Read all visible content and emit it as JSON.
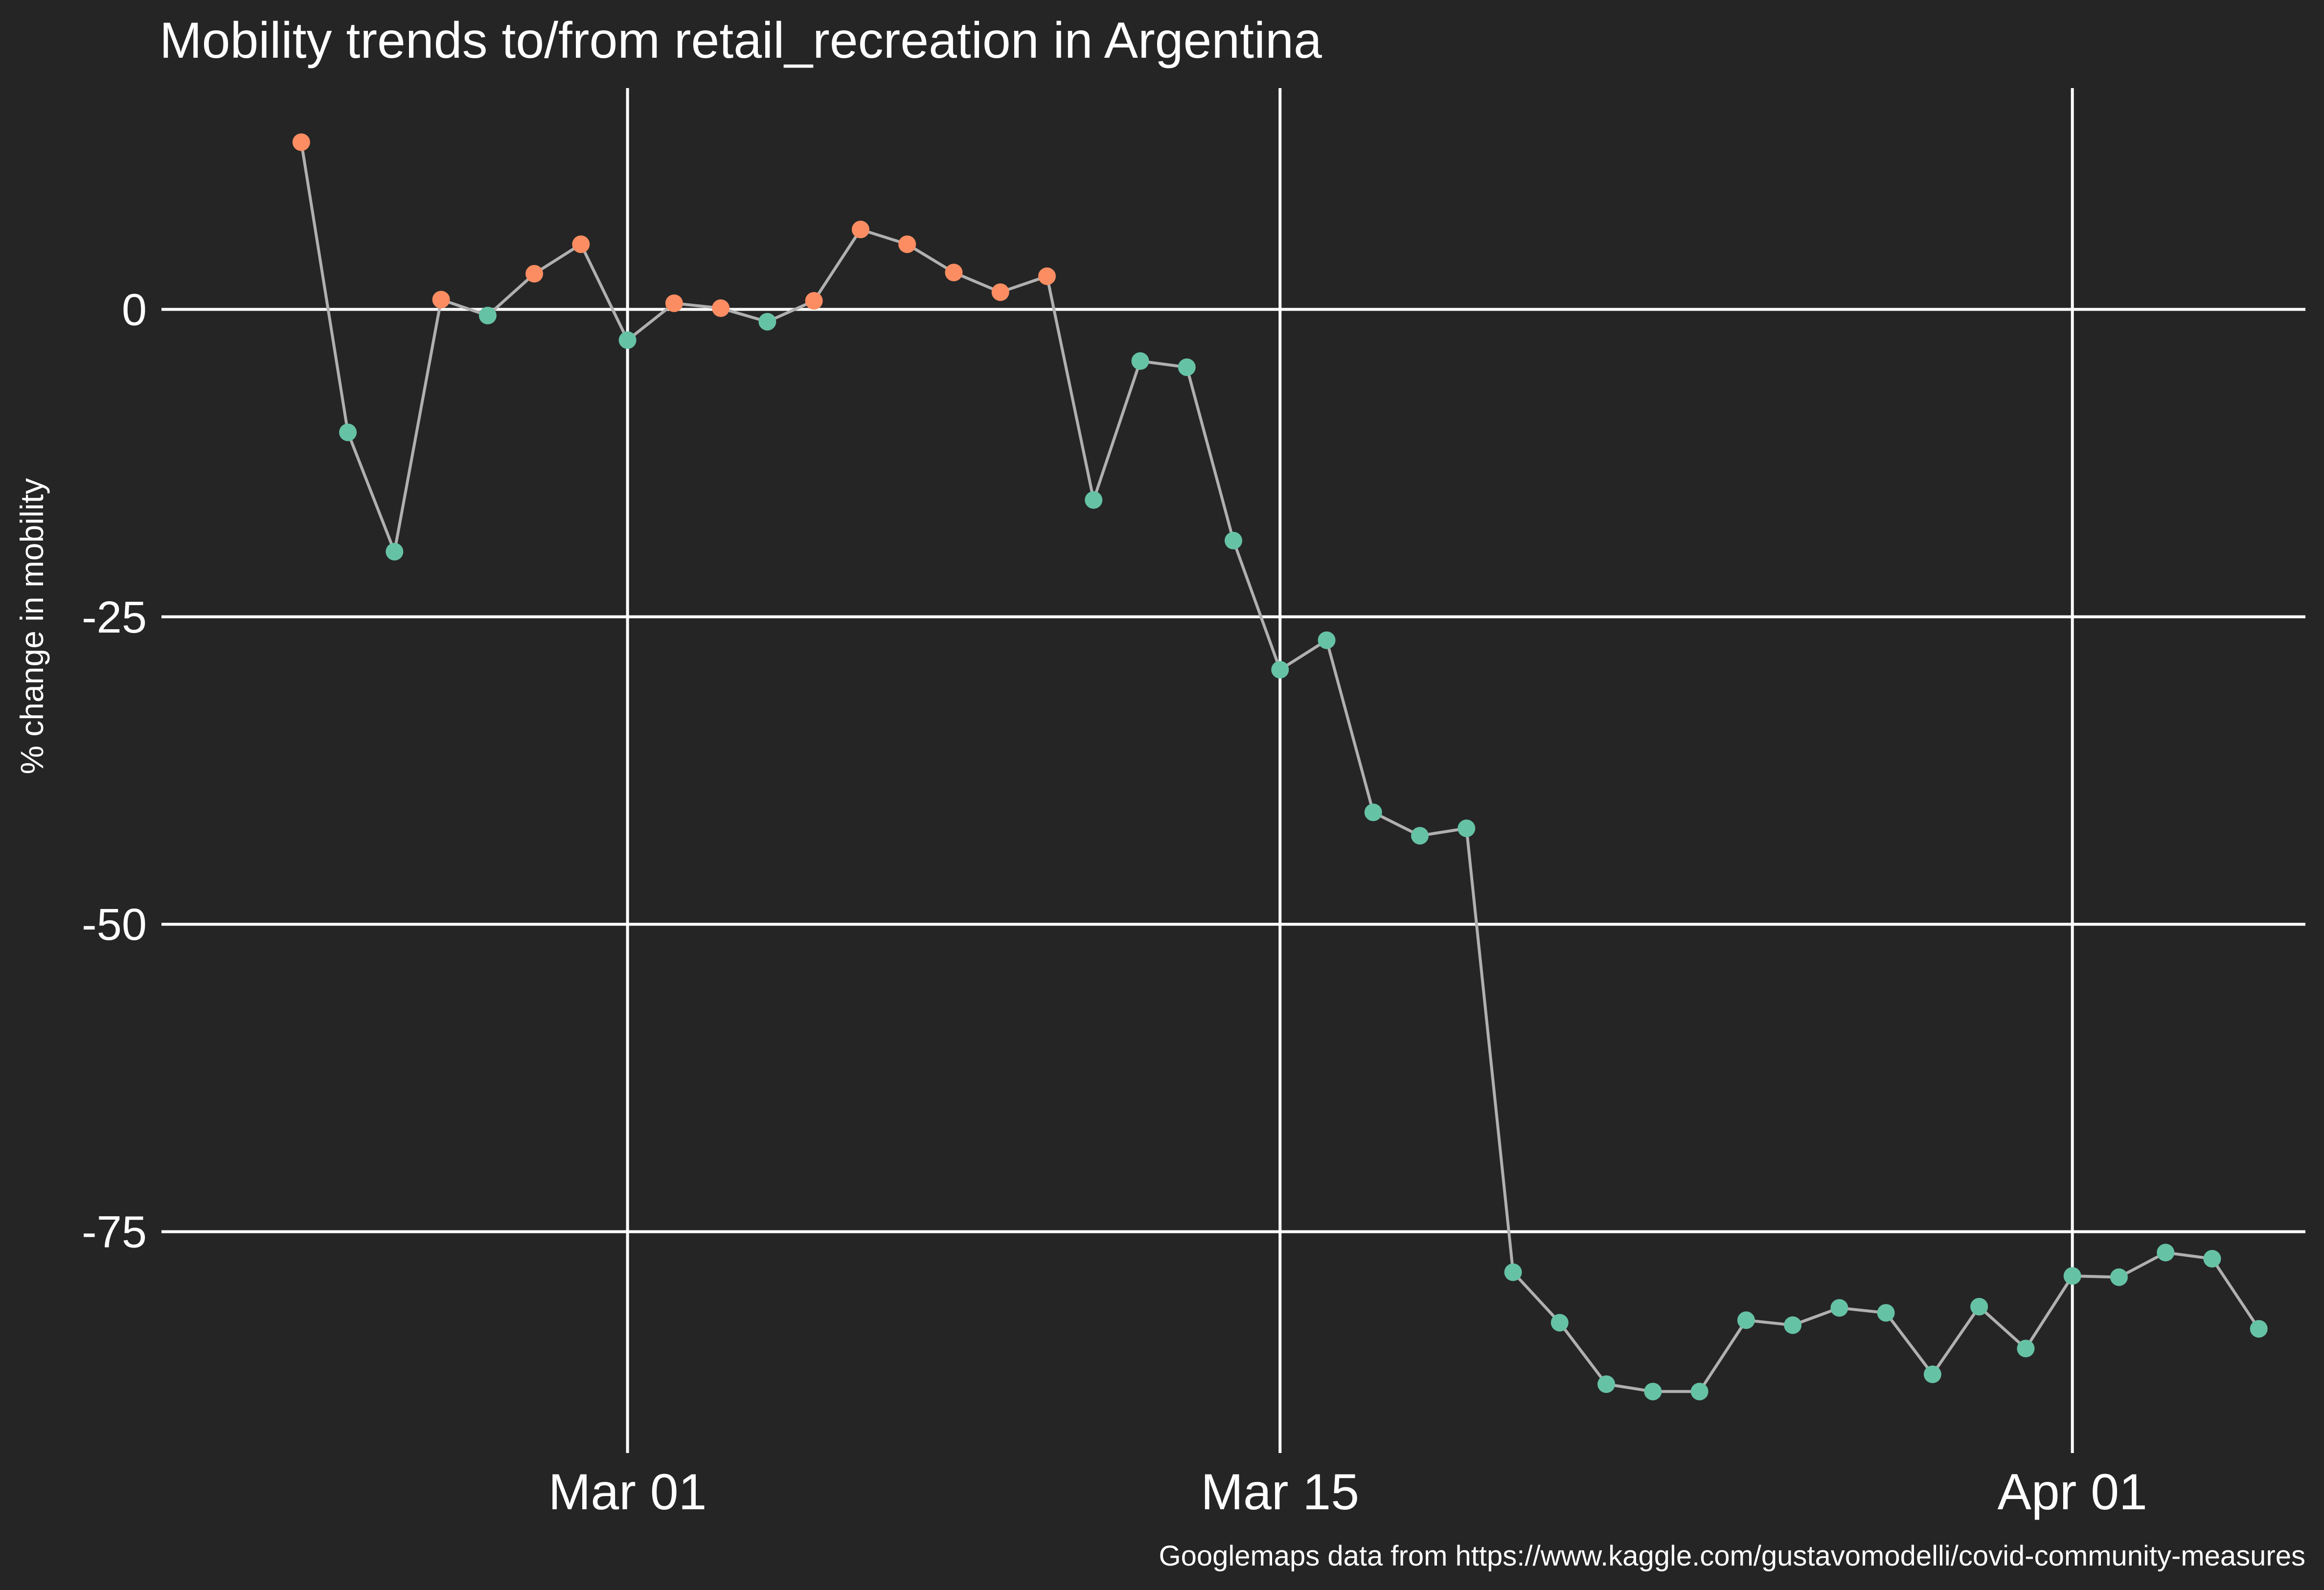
{
  "chart_data": {
    "type": "line",
    "title": "Mobility trends to/from retail_recreation in Argentina",
    "xlabel": "",
    "ylabel": "% change in mobility",
    "caption": "Googlemaps data from https://www.kaggle.com/gustavomodelli/covid-community-measures",
    "x_ticks": [
      {
        "label": "Mar 01",
        "date": "2020-03-01"
      },
      {
        "label": "Mar 15",
        "date": "2020-03-15"
      },
      {
        "label": "Apr 01",
        "date": "2020-04-01"
      }
    ],
    "y_ticks": [
      0,
      -25,
      -50,
      -75
    ],
    "xlim": [
      "2020-02-20",
      "2020-04-06"
    ],
    "ylim": [
      -93,
      18
    ],
    "grid": true,
    "legend": "none",
    "colors": {
      "background": "#252525",
      "positive": "#fc8d62",
      "negative": "#66c2a5",
      "line": "#b0b0b0",
      "grid": "#ffffff"
    },
    "x": [
      "2020-02-23",
      "2020-02-24",
      "2020-02-25",
      "2020-02-26",
      "2020-02-27",
      "2020-02-28",
      "2020-02-29",
      "2020-03-01",
      "2020-03-02",
      "2020-03-03",
      "2020-03-04",
      "2020-03-05",
      "2020-03-06",
      "2020-03-07",
      "2020-03-08",
      "2020-03-09",
      "2020-03-10",
      "2020-03-11",
      "2020-03-12",
      "2020-03-13",
      "2020-03-14",
      "2020-03-15",
      "2020-03-16",
      "2020-03-17",
      "2020-03-18",
      "2020-03-19",
      "2020-03-20",
      "2020-03-21",
      "2020-03-22",
      "2020-03-23",
      "2020-03-24",
      "2020-03-25",
      "2020-03-26",
      "2020-03-27",
      "2020-03-28",
      "2020-03-29",
      "2020-03-30",
      "2020-03-31",
      "2020-04-01",
      "2020-04-02",
      "2020-04-03",
      "2020-04-04",
      "2020-04-05"
    ],
    "values": [
      13.6,
      -10,
      -19.7,
      0.8,
      -0.5,
      2.9,
      5.3,
      -2.5,
      0.5,
      0.1,
      -1,
      0.7,
      6.5,
      5.3,
      3,
      1.4,
      2.7,
      -15.5,
      -4.2,
      -4.7,
      -18.8,
      -29.3,
      -26.9,
      -40.9,
      -42.8,
      -42.2,
      -78.3,
      -82.4,
      -87.4,
      -88,
      -88,
      -82.2,
      -82.6,
      -81.2,
      -81.6,
      -86.6,
      -81.1,
      -84.5,
      -78.6,
      -78.7,
      -76.7,
      -77.2,
      -82.9
    ]
  }
}
